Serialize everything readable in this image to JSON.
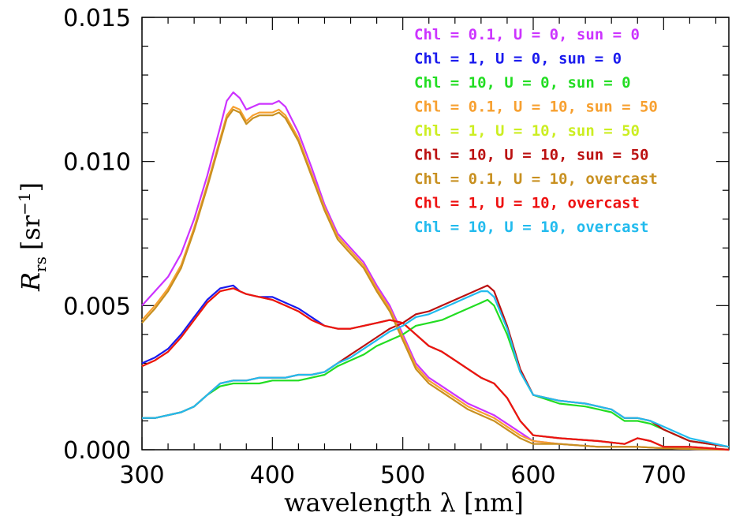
{
  "chart_data": {
    "type": "line",
    "xlabel": "wavelength λ [nm]",
    "ylabel_main": "R",
    "ylabel_sub": "rs",
    "ylabel_unit_open": "[sr",
    "ylabel_unit_exp": "−1",
    "ylabel_unit_close": "]",
    "xlim": [
      300,
      750
    ],
    "ylim": [
      0.0,
      0.015
    ],
    "xticks": [
      300,
      400,
      500,
      600,
      700
    ],
    "xtick_labels": [
      "300",
      "400",
      "500",
      "600",
      "700"
    ],
    "yticks": [
      0.0,
      0.005,
      0.01,
      0.015
    ],
    "ytick_labels": [
      "0.000",
      "0.005",
      "0.010",
      "0.015"
    ],
    "grid": false,
    "legend_position": "top-right",
    "series": [
      {
        "name": "Chl = 0.1, U = 0, sun = 0",
        "color": "#cc33ff",
        "x": [
          300,
          310,
          320,
          330,
          340,
          350,
          360,
          365,
          370,
          375,
          380,
          385,
          390,
          400,
          405,
          410,
          420,
          430,
          440,
          450,
          460,
          470,
          480,
          490,
          500,
          510,
          520,
          530,
          540,
          550,
          560,
          570,
          580,
          590,
          600,
          620,
          650,
          680,
          700,
          750
        ],
        "y": [
          0.005,
          0.0055,
          0.006,
          0.0068,
          0.008,
          0.0095,
          0.0112,
          0.0121,
          0.0124,
          0.0122,
          0.0118,
          0.0119,
          0.012,
          0.012,
          0.0121,
          0.0119,
          0.011,
          0.0098,
          0.0085,
          0.0075,
          0.007,
          0.0065,
          0.0057,
          0.005,
          0.004,
          0.003,
          0.0025,
          0.0022,
          0.0019,
          0.0016,
          0.0014,
          0.0012,
          0.0009,
          0.0006,
          0.0003,
          0.0002,
          0.0001,
          0.0001,
          5e-05,
          0.0
        ]
      },
      {
        "name": "Chl = 1, U = 0, sun = 0",
        "color": "#1a1aee",
        "x": [
          300,
          310,
          320,
          330,
          340,
          350,
          360,
          370,
          375,
          380,
          390,
          400,
          410,
          420,
          430,
          440,
          450,
          460,
          470,
          480,
          490,
          500,
          510,
          520,
          530,
          540,
          550,
          560,
          570,
          580,
          590,
          600,
          620,
          650,
          670,
          680,
          690,
          700,
          720,
          750
        ],
        "y": [
          0.003,
          0.0032,
          0.0035,
          0.004,
          0.0046,
          0.0052,
          0.0056,
          0.0057,
          0.0055,
          0.0054,
          0.0053,
          0.0053,
          0.0051,
          0.0049,
          0.0046,
          0.0043,
          0.0042,
          0.0042,
          0.0043,
          0.0044,
          0.0045,
          0.0044,
          0.004,
          0.0036,
          0.0034,
          0.0031,
          0.0028,
          0.0025,
          0.0023,
          0.0018,
          0.001,
          0.0005,
          0.0004,
          0.0003,
          0.0002,
          0.0004,
          0.0003,
          0.0001,
          0.0001,
          0.0
        ]
      },
      {
        "name": "Chl = 10, U = 0, sun = 0",
        "color": "#22dd22",
        "x": [
          300,
          310,
          320,
          330,
          340,
          350,
          360,
          370,
          380,
          390,
          400,
          410,
          420,
          430,
          440,
          450,
          460,
          470,
          480,
          490,
          500,
          510,
          520,
          530,
          540,
          550,
          560,
          565,
          570,
          580,
          590,
          600,
          620,
          640,
          660,
          670,
          680,
          690,
          700,
          720,
          750
        ],
        "y": [
          0.0011,
          0.0011,
          0.0012,
          0.0013,
          0.0015,
          0.0019,
          0.0022,
          0.0023,
          0.0023,
          0.0023,
          0.0024,
          0.0024,
          0.0024,
          0.0025,
          0.0026,
          0.0029,
          0.0031,
          0.0033,
          0.0036,
          0.0038,
          0.004,
          0.0043,
          0.0044,
          0.0045,
          0.0047,
          0.0049,
          0.0051,
          0.0052,
          0.005,
          0.004,
          0.0027,
          0.0019,
          0.0016,
          0.0015,
          0.0013,
          0.001,
          0.001,
          0.0009,
          0.0007,
          0.0003,
          0.0001
        ]
      },
      {
        "name": "Chl = 0.1, U = 10, sun = 50",
        "color": "#f7a030",
        "x": [
          300,
          310,
          320,
          330,
          340,
          350,
          360,
          365,
          370,
          375,
          380,
          385,
          390,
          400,
          405,
          410,
          420,
          430,
          440,
          450,
          460,
          470,
          480,
          490,
          500,
          510,
          520,
          530,
          540,
          550,
          560,
          570,
          580,
          590,
          600,
          620,
          650,
          680,
          700,
          750
        ],
        "y": [
          0.0045,
          0.005,
          0.0056,
          0.0064,
          0.0077,
          0.0092,
          0.0108,
          0.0116,
          0.0119,
          0.0118,
          0.0114,
          0.0116,
          0.0117,
          0.0117,
          0.0118,
          0.0116,
          0.0108,
          0.0096,
          0.0084,
          0.0074,
          0.0069,
          0.0064,
          0.0056,
          0.0049,
          0.0039,
          0.0029,
          0.0024,
          0.0021,
          0.0018,
          0.0015,
          0.0013,
          0.0011,
          0.0008,
          0.0005,
          0.0003,
          0.0002,
          0.0001,
          0.0001,
          5e-05,
          0.0
        ]
      },
      {
        "name": "Chl = 1, U = 10, sun = 50",
        "color": "#ccee22",
        "x": [
          300,
          310,
          320,
          330,
          340,
          350,
          360,
          370,
          375,
          380,
          390,
          400,
          410,
          420,
          430,
          440,
          450,
          460,
          470,
          480,
          490,
          500,
          510,
          520,
          530,
          540,
          550,
          560,
          570,
          580,
          590,
          600,
          620,
          650,
          670,
          680,
          690,
          700,
          720,
          750
        ],
        "y": [
          0.0029,
          0.0031,
          0.0034,
          0.0039,
          0.0045,
          0.0051,
          0.0055,
          0.0056,
          0.0055,
          0.0054,
          0.0053,
          0.0052,
          0.005,
          0.0048,
          0.0045,
          0.0043,
          0.0042,
          0.0042,
          0.0043,
          0.0044,
          0.0045,
          0.0044,
          0.004,
          0.0036,
          0.0034,
          0.0031,
          0.0028,
          0.0025,
          0.0023,
          0.0018,
          0.001,
          0.0005,
          0.0004,
          0.0003,
          0.0002,
          0.0004,
          0.0003,
          0.0001,
          0.0001,
          0.0
        ]
      },
      {
        "name": "Chl = 10, U = 10, sun = 50",
        "color": "#bb1111",
        "x": [
          300,
          310,
          320,
          330,
          340,
          350,
          360,
          370,
          380,
          390,
          400,
          410,
          420,
          430,
          440,
          450,
          460,
          470,
          480,
          490,
          500,
          510,
          520,
          530,
          540,
          550,
          560,
          565,
          570,
          580,
          590,
          600,
          620,
          640,
          660,
          670,
          680,
          690,
          700,
          720,
          750
        ],
        "y": [
          0.0011,
          0.0011,
          0.0012,
          0.0013,
          0.0015,
          0.0019,
          0.0023,
          0.0024,
          0.0024,
          0.0025,
          0.0025,
          0.0025,
          0.0026,
          0.0026,
          0.0027,
          0.003,
          0.0033,
          0.0036,
          0.0039,
          0.0042,
          0.0044,
          0.0047,
          0.0048,
          0.005,
          0.0052,
          0.0054,
          0.0056,
          0.0057,
          0.0055,
          0.0043,
          0.0028,
          0.0019,
          0.0017,
          0.0016,
          0.0014,
          0.0011,
          0.0011,
          0.001,
          0.0007,
          0.0003,
          0.0001
        ]
      },
      {
        "name": "Chl = 0.1, U = 10, overcast",
        "color": "#c89020",
        "x": [
          300,
          310,
          320,
          330,
          340,
          350,
          360,
          365,
          370,
          375,
          380,
          385,
          390,
          400,
          405,
          410,
          420,
          430,
          440,
          450,
          460,
          470,
          480,
          490,
          500,
          510,
          520,
          530,
          540,
          550,
          560,
          570,
          580,
          590,
          600,
          620,
          650,
          680,
          700,
          750
        ],
        "y": [
          0.0044,
          0.0049,
          0.0055,
          0.0063,
          0.0076,
          0.0091,
          0.0107,
          0.0115,
          0.0118,
          0.0117,
          0.0113,
          0.0115,
          0.0116,
          0.0116,
          0.0117,
          0.0115,
          0.0107,
          0.0095,
          0.0083,
          0.0073,
          0.0068,
          0.0063,
          0.0055,
          0.0048,
          0.0038,
          0.0028,
          0.0023,
          0.002,
          0.0017,
          0.0014,
          0.0012,
          0.001,
          0.0007,
          0.0004,
          0.0002,
          0.0002,
          0.0001,
          0.0001,
          5e-05,
          0.0
        ]
      },
      {
        "name": "Chl = 1, U = 10, overcast",
        "color": "#ee1111",
        "x": [
          300,
          310,
          320,
          330,
          340,
          350,
          360,
          370,
          375,
          380,
          390,
          400,
          410,
          420,
          430,
          440,
          450,
          460,
          470,
          480,
          490,
          500,
          510,
          520,
          530,
          540,
          550,
          560,
          570,
          580,
          590,
          600,
          620,
          650,
          670,
          680,
          690,
          700,
          720,
          750
        ],
        "y": [
          0.0029,
          0.0031,
          0.0034,
          0.0039,
          0.0045,
          0.0051,
          0.0055,
          0.0056,
          0.0055,
          0.0054,
          0.0053,
          0.0052,
          0.005,
          0.0048,
          0.0045,
          0.0043,
          0.0042,
          0.0042,
          0.0043,
          0.0044,
          0.0045,
          0.0044,
          0.004,
          0.0036,
          0.0034,
          0.0031,
          0.0028,
          0.0025,
          0.0023,
          0.0018,
          0.001,
          0.0005,
          0.0004,
          0.0003,
          0.0002,
          0.0004,
          0.0003,
          0.0001,
          0.0001,
          0.0
        ]
      },
      {
        "name": "Chl = 10, U = 10, overcast",
        "color": "#22bbee",
        "x": [
          300,
          310,
          320,
          330,
          340,
          350,
          360,
          370,
          380,
          390,
          400,
          410,
          420,
          430,
          440,
          450,
          460,
          470,
          480,
          490,
          500,
          510,
          520,
          530,
          540,
          550,
          560,
          565,
          570,
          580,
          590,
          600,
          620,
          640,
          660,
          670,
          680,
          690,
          700,
          720,
          750
        ],
        "y": [
          0.0011,
          0.0011,
          0.0012,
          0.0013,
          0.0015,
          0.0019,
          0.0023,
          0.0024,
          0.0024,
          0.0025,
          0.0025,
          0.0025,
          0.0026,
          0.0026,
          0.0027,
          0.003,
          0.0032,
          0.0035,
          0.0038,
          0.0041,
          0.0043,
          0.0046,
          0.0047,
          0.0049,
          0.0051,
          0.0053,
          0.0055,
          0.0055,
          0.0053,
          0.0042,
          0.0027,
          0.0019,
          0.0017,
          0.0016,
          0.0014,
          0.0011,
          0.0011,
          0.001,
          0.0008,
          0.0004,
          0.0001
        ]
      }
    ]
  }
}
